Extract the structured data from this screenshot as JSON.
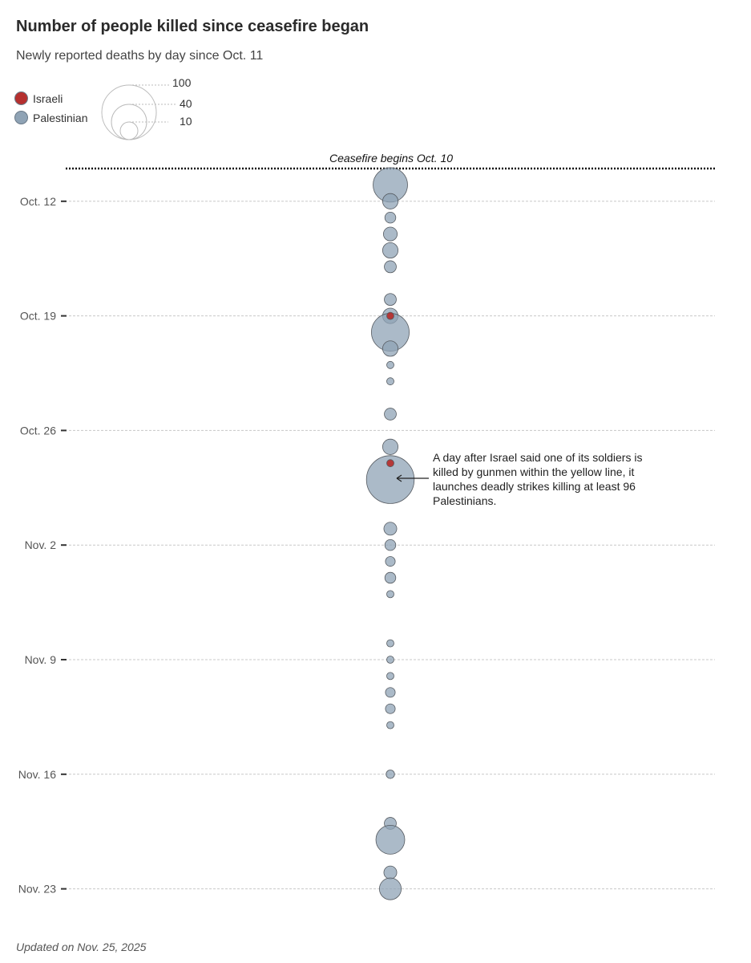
{
  "title": "Number of people killed since ceasefire began",
  "subtitle": "Newly reported deaths by day since Oct. 11",
  "legend": {
    "israeli": {
      "label": "Israeli",
      "color": "#b5302f"
    },
    "palestinian": {
      "label": "Palestinian",
      "color": "#8fa3b5"
    }
  },
  "size_legend": {
    "values": [
      100,
      40,
      10
    ],
    "labels": [
      "100",
      "40",
      "10"
    ]
  },
  "ceasefire_label": "Ceasefire begins Oct. 10",
  "annotation": "A day after Israel said one of its soldiers is killed by gunmen within the yellow line, it launches deadly strikes killing at least 96 Palestinians.",
  "footer": "Updated on Nov. 25, 2025",
  "chart_data": {
    "type": "scatter",
    "encoding": "bubble area proportional to deaths",
    "y_axis": "date",
    "y_ticks": [
      "Oct. 12",
      "Oct. 19",
      "Oct. 26",
      "Nov. 2",
      "Nov. 9",
      "Nov. 16",
      "Nov. 23"
    ],
    "ylim": [
      "Oct. 10",
      "Nov. 23"
    ],
    "grid": true,
    "series": [
      {
        "name": "Palestinian",
        "color": "#8fa3b5",
        "points": [
          {
            "date": "Oct. 11",
            "value": 50
          },
          {
            "date": "Oct. 12",
            "value": 10
          },
          {
            "date": "Oct. 13",
            "value": 5
          },
          {
            "date": "Oct. 14",
            "value": 8
          },
          {
            "date": "Oct. 15",
            "value": 10
          },
          {
            "date": "Oct. 16",
            "value": 6
          },
          {
            "date": "Oct. 18",
            "value": 6
          },
          {
            "date": "Oct. 19",
            "value": 10
          },
          {
            "date": "Oct. 20",
            "value": 60
          },
          {
            "date": "Oct. 21",
            "value": 10
          },
          {
            "date": "Oct. 22",
            "value": 2
          },
          {
            "date": "Oct. 23",
            "value": 2
          },
          {
            "date": "Oct. 25",
            "value": 6
          },
          {
            "date": "Oct. 27",
            "value": 10
          },
          {
            "date": "Oct. 29",
            "value": 96
          },
          {
            "date": "Nov. 1",
            "value": 7
          },
          {
            "date": "Nov. 2",
            "value": 5
          },
          {
            "date": "Nov. 3",
            "value": 4
          },
          {
            "date": "Nov. 4",
            "value": 5
          },
          {
            "date": "Nov. 5",
            "value": 2
          },
          {
            "date": "Nov. 8",
            "value": 2
          },
          {
            "date": "Nov. 9",
            "value": 2
          },
          {
            "date": "Nov. 10",
            "value": 2
          },
          {
            "date": "Nov. 11",
            "value": 4
          },
          {
            "date": "Nov. 12",
            "value": 4
          },
          {
            "date": "Nov. 13",
            "value": 2
          },
          {
            "date": "Nov. 16",
            "value": 3
          },
          {
            "date": "Nov. 19",
            "value": 6
          },
          {
            "date": "Nov. 20",
            "value": 35
          },
          {
            "date": "Nov. 22",
            "value": 7
          },
          {
            "date": "Nov. 23",
            "value": 20
          }
        ]
      },
      {
        "name": "Israeli",
        "color": "#b5302f",
        "points": [
          {
            "date": "Oct. 19",
            "value": 2
          },
          {
            "date": "Oct. 28",
            "value": 1
          }
        ]
      }
    ]
  }
}
